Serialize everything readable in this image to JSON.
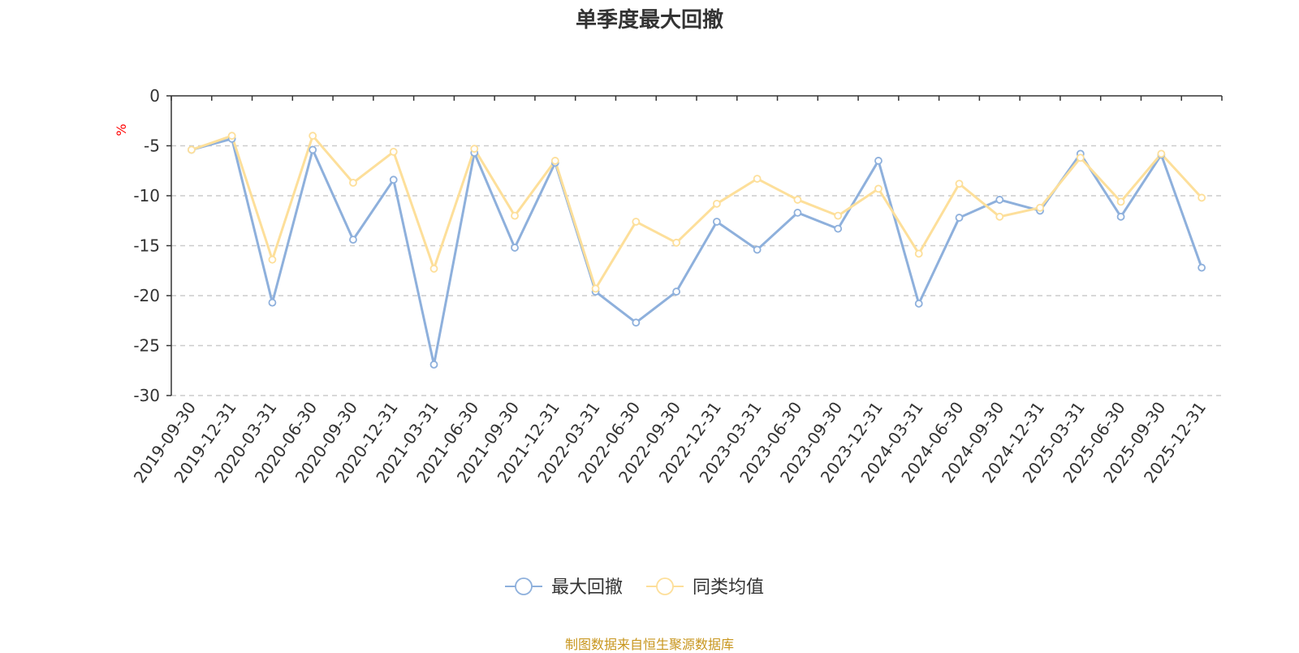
{
  "chart_data": {
    "type": "line",
    "title": "单季度最大回撤",
    "ylabel": "%",
    "ylim": [
      -30,
      0
    ],
    "yticks": [
      0,
      -5,
      -10,
      -15,
      -20,
      -25,
      -30
    ],
    "grid": true,
    "legend_position": "bottom",
    "categories": [
      "2019-09-30",
      "2019-12-31",
      "2020-03-31",
      "2020-06-30",
      "2020-09-30",
      "2020-12-31",
      "2021-03-31",
      "2021-06-30",
      "2021-09-30",
      "2021-12-31",
      "2022-03-31",
      "2022-06-30",
      "2022-09-30",
      "2022-12-31",
      "2023-03-31",
      "2023-06-30",
      "2023-09-30",
      "2023-12-31",
      "2024-03-31",
      "2024-06-30",
      "2024-09-30",
      "2024-12-31",
      "2025-03-31",
      "2025-06-30",
      "2025-09-30",
      "2025-12-31"
    ],
    "series": [
      {
        "name": "最大回撤",
        "color": "#8eb0dc",
        "values": [
          -5.4,
          -4.3,
          -20.7,
          -5.4,
          -14.4,
          -8.4,
          -26.9,
          -5.7,
          -15.2,
          -6.7,
          -19.6,
          -22.7,
          -19.6,
          -12.6,
          -15.4,
          -11.7,
          -13.3,
          -6.5,
          -20.8,
          -12.2,
          -10.4,
          -11.5,
          -5.8,
          -12.1,
          -5.9,
          -17.2
        ]
      },
      {
        "name": "同类均值",
        "color": "#fddf9a",
        "values": [
          -5.4,
          -4.0,
          -16.4,
          -4.0,
          -8.7,
          -5.6,
          -17.3,
          -5.3,
          -12.0,
          -6.5,
          -19.3,
          -12.6,
          -14.7,
          -10.8,
          -8.3,
          -10.4,
          -12.0,
          -9.3,
          -15.8,
          -8.8,
          -12.1,
          -11.2,
          -6.2,
          -10.6,
          -5.8,
          -10.2
        ]
      }
    ]
  },
  "footer": "制图数据来自恒生聚源数据库"
}
